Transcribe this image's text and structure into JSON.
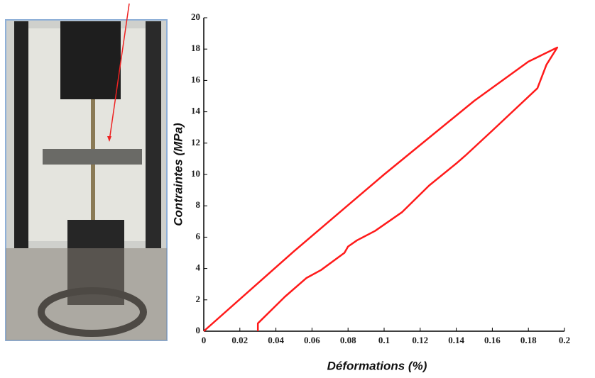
{
  "chart_data": {
    "type": "line",
    "xlabel": "Déformations (%)",
    "ylabel": "Contraintes (MPa)",
    "x": [
      0,
      0.05,
      0.1,
      0.15,
      0.18,
      0.196,
      0.19,
      0.185,
      0.16,
      0.145,
      0.14,
      0.125,
      0.11,
      0.095,
      0.085,
      0.08,
      0.078,
      0.065,
      0.057,
      0.045,
      0.03,
      0.03
    ],
    "values": [
      0,
      5.1,
      10.0,
      14.7,
      17.2,
      18.1,
      17.0,
      15.5,
      12.8,
      11.2,
      10.7,
      9.3,
      7.6,
      6.4,
      5.8,
      5.4,
      5.0,
      3.9,
      3.4,
      2.2,
      0.5,
      0
    ],
    "color": "#ff1a1a",
    "xlim": [
      0,
      0.2
    ],
    "xticks": [
      0,
      0.02,
      0.04,
      0.06,
      0.08,
      0.1,
      0.12,
      0.14,
      0.16,
      0.18,
      0.2
    ],
    "ylim": [
      0,
      20
    ],
    "yticks": [
      0,
      2,
      4,
      6,
      8,
      10,
      12,
      14,
      16,
      18,
      20
    ]
  }
}
